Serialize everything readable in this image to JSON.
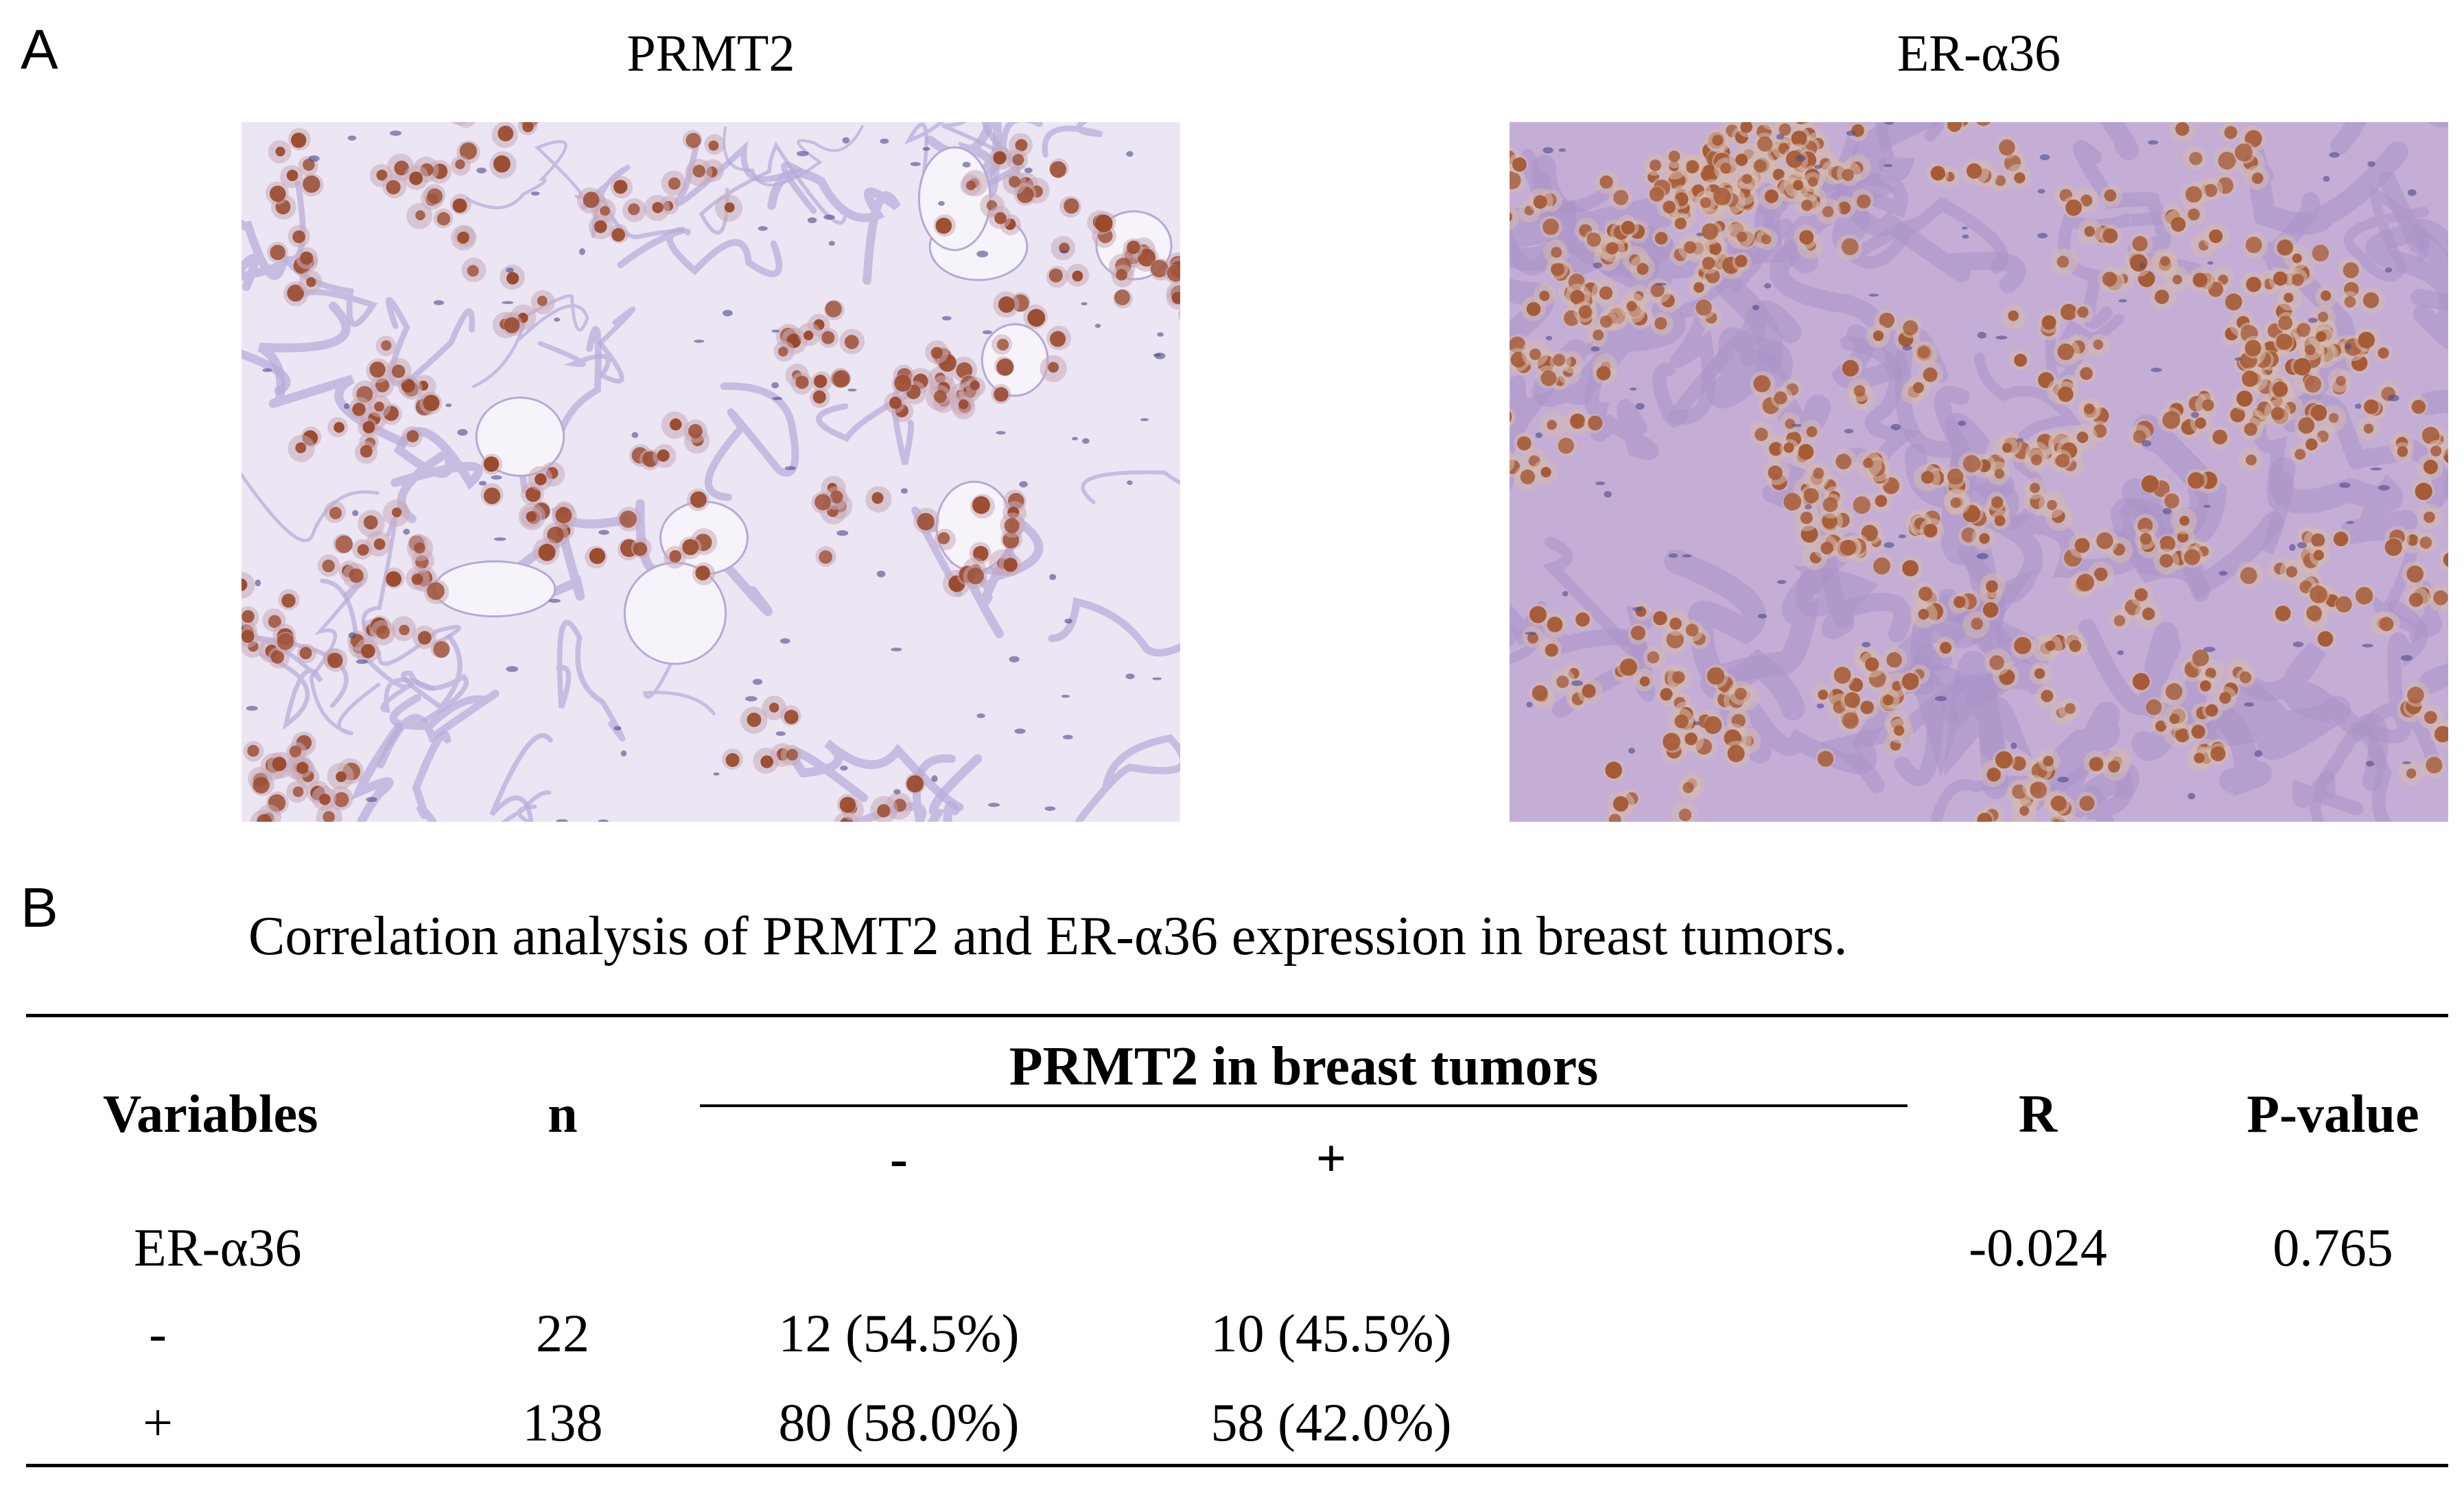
{
  "panel_a": {
    "letter": "A",
    "left_image": {
      "title": "PRMT2",
      "stain": "brown nuclei on pale lavender stroma",
      "colors": {
        "background": "#ece6f4",
        "stroma": "#b6a9d8",
        "nuclei": "#9a4a2c",
        "cells": "#c9a9b8"
      }
    },
    "right_image": {
      "title": "ER-α36",
      "stain": "dense brown nuclei on purple stroma",
      "colors": {
        "background": "#c4aed6",
        "stroma": "#a993c9",
        "nuclei": "#a55a34",
        "cells": "#d6b9b0"
      }
    }
  },
  "panel_b": {
    "letter": "B",
    "caption": "Correlation analysis of PRMT2 and ER-α36 expression in breast tumors.",
    "header": {
      "variables": "Variables",
      "n": "n",
      "group": "PRMT2 in breast tumors",
      "neg": "-",
      "pos": "+",
      "r": "R",
      "p": "P-value"
    },
    "section_label": "ER-α36",
    "r_value": "-0.024",
    "p_value": "0.765",
    "rows": [
      {
        "label": "-",
        "n": "22",
        "neg": "12 (54.5%)",
        "pos": "10 (45.5%)"
      },
      {
        "label": "+",
        "n": "138",
        "neg": "80 (58.0%)",
        "pos": "58 (42.0%)"
      }
    ]
  }
}
